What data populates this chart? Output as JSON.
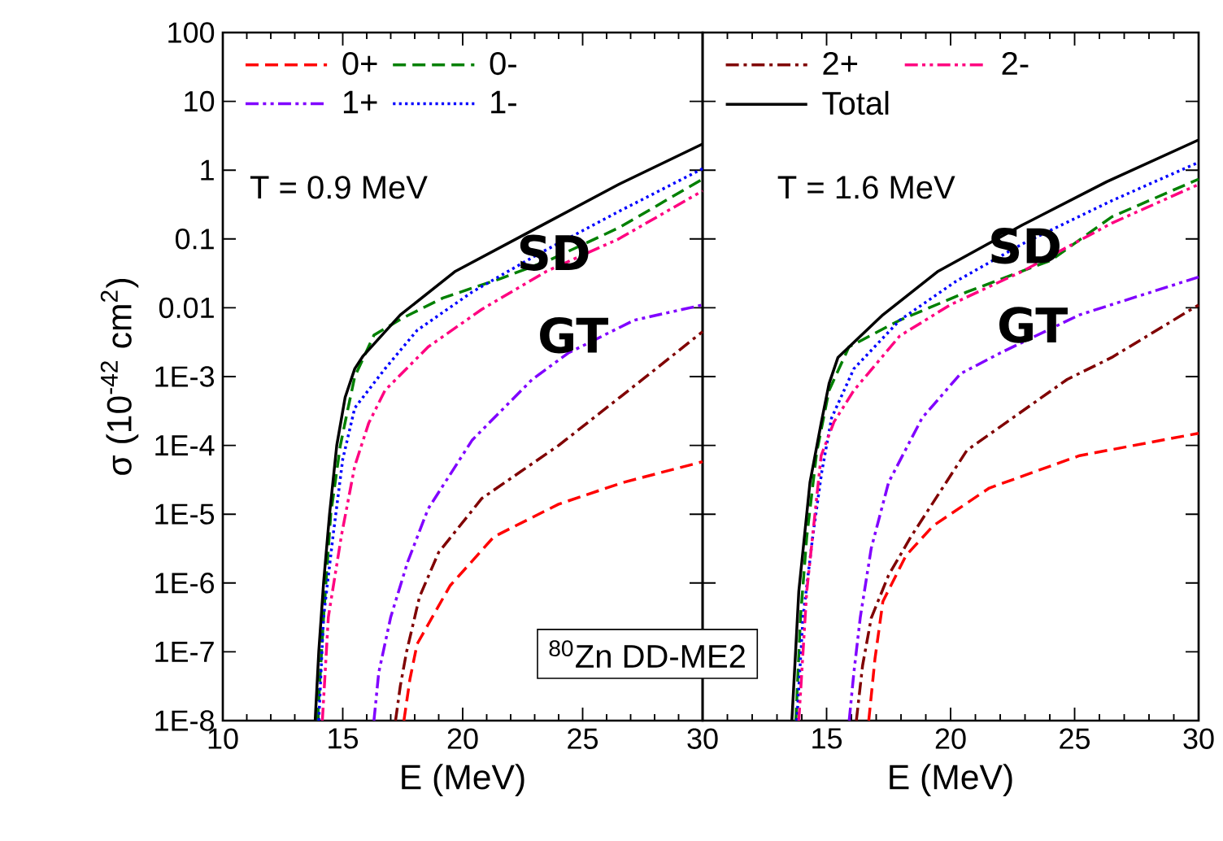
{
  "chart_data": [
    {
      "type": "line",
      "xlabel": "E (MeV)",
      "ylabel": "σ (10$^{-42}$ cm$^{2}$)",
      "log": "y",
      "legend": "top left",
      "xlim": [
        10,
        30
      ],
      "ylim": [
        1e-08,
        100
      ],
      "xticks": [
        10,
        15,
        20,
        25,
        30
      ],
      "yticks": [
        {
          "value": 1e-08,
          "label": "1E-8"
        },
        {
          "value": 1e-07,
          "label": "1E-7"
        },
        {
          "value": 1e-06,
          "label": "1E-6"
        },
        {
          "value": 1e-05,
          "label": "1E-5"
        },
        {
          "value": 0.0001,
          "label": "1E-4"
        },
        {
          "value": 0.001,
          "label": "1E-3"
        },
        0.01,
        0.1,
        1,
        10,
        100
      ],
      "annotations": [
        "T = 0.9 MeV",
        "SD",
        "GT",
        "$^{80}$Zn  DD-ME2"
      ],
      "series": [
        {
          "name": "0+",
          "color": "#ff0000",
          "line_style": "dashed",
          "x": [
            17.55,
            17.8,
            18.1,
            19.47,
            21.3,
            24,
            26.7,
            30
          ],
          "values": [
            1e-08,
            4e-08,
            1.3e-07,
            9.1e-07,
            4.7e-06,
            1.4e-05,
            2.9e-05,
            5.8e-05
          ]
        },
        {
          "name": "0-",
          "color": "#008000",
          "line_style": "dashed",
          "x": [
            13.95,
            14.2,
            14.5,
            14.9,
            15.2,
            15.5,
            16.3,
            17.5,
            19.2,
            21.5,
            23.6,
            26.5,
            30
          ],
          "values": [
            1e-08,
            3.2e-07,
            1e-05,
            0.0001,
            0.00032,
            0.001,
            0.004,
            0.0071,
            0.014,
            0.026,
            0.049,
            0.145,
            0.74
          ]
        },
        {
          "name": "1+",
          "color": "#8000ff",
          "line_style": "dashdotdot",
          "x": [
            16.3,
            16.5,
            17.0,
            17.7,
            18.56,
            20.4,
            22.9,
            24.4,
            27.15,
            30
          ],
          "values": [
            1e-08,
            5e-08,
            3.2e-07,
            2e-06,
            1.2e-05,
            0.00012,
            0.00091,
            0.0022,
            0.0066,
            0.011
          ]
        },
        {
          "name": "1-",
          "color": "#0000ff",
          "line_style": "dotted",
          "x": [
            14.0,
            14.2,
            14.6,
            15.0,
            15.5,
            16.76,
            18.1,
            20.4,
            23.1,
            26.5,
            30
          ],
          "values": [
            1e-08,
            3.2e-07,
            5e-06,
            6.3e-05,
            0.00035,
            0.0013,
            0.0047,
            0.017,
            0.059,
            0.25,
            1.05
          ]
        },
        {
          "color": "#800000",
          "line_style": "dashdot",
          "x": [
            17.2,
            17.4,
            17.66,
            18.2,
            19.0,
            20.8,
            24,
            27.5,
            30
          ],
          "values": [
            1e-08,
            3.2e-08,
            1e-07,
            6.3e-07,
            2.8e-06,
            1.7e-05,
            0.0001,
            0.00091,
            0.0045
          ]
        },
        {
          "color": "#ff0080",
          "line_style": "dashdotdot",
          "x": [
            14.15,
            14.4,
            14.95,
            15.5,
            16.08,
            16.76,
            18.56,
            20.8,
            23.5,
            26.5,
            30
          ],
          "values": [
            1e-08,
            3.2e-07,
            5e-06,
            5e-05,
            0.00021,
            0.00063,
            0.0027,
            0.0095,
            0.034,
            0.1,
            0.5
          ]
        },
        {
          "color": "#000000",
          "line_style": "solid",
          "x": [
            13.85,
            14.0,
            14.2,
            14.45,
            14.75,
            15.1,
            15.5,
            15.85,
            17.4,
            19.7,
            23.1,
            26.5,
            30
          ],
          "values": [
            1e-08,
            1e-07,
            1e-06,
            1e-05,
            0.0001,
            0.0005,
            0.0013,
            0.002,
            0.0079,
            0.034,
            0.145,
            0.62,
            2.4
          ]
        }
      ]
    },
    {
      "type": "line",
      "xlabel": "E (MeV)",
      "log": "y",
      "legend": "top left",
      "tick_labels": "x",
      "xlim": [
        10,
        30
      ],
      "ylim": [
        1e-08,
        100
      ],
      "xticks": [
        {
          "value": 10,
          "label": null
        },
        15,
        20,
        25,
        30
      ],
      "yticks": [
        1e-08,
        1e-07,
        1e-06,
        1e-05,
        0.0001,
        0.001,
        0.01,
        0.1,
        1,
        10,
        100
      ],
      "annotations": [
        "T = 1.6 MeV",
        "SD",
        "GT"
      ],
      "series": [
        {
          "color": "#ff0000",
          "line_style": "dashed",
          "x": [
            16.7,
            16.95,
            17.27,
            18.2,
            19.3,
            21.56,
            25.2,
            30
          ],
          "values": [
            1e-08,
            7.9e-08,
            5.4e-07,
            2.5e-06,
            6.8e-06,
            2.4e-05,
            7.1e-05,
            0.00015
          ]
        },
        {
          "color": "#008000",
          "line_style": "dashed",
          "x": [
            13.76,
            13.95,
            14.2,
            14.6,
            15.1,
            15.9,
            17.95,
            20.66,
            24.05,
            26.5,
            30
          ],
          "values": [
            1e-08,
            3.2e-07,
            4.7e-06,
            7.9e-05,
            0.00063,
            0.0027,
            0.0066,
            0.017,
            0.049,
            0.21,
            0.74
          ]
        },
        {
          "color": "#8000ff",
          "line_style": "dashdotdot",
          "x": [
            15.91,
            16.1,
            16.36,
            16.8,
            17.5,
            18.85,
            20.4,
            22,
            25.2,
            30
          ],
          "values": [
            1e-08,
            5e-08,
            3.2e-07,
            3.2e-06,
            2.9e-05,
            0.00025,
            0.0011,
            0.0022,
            0.0079,
            0.028
          ]
        },
        {
          "color": "#0000ff",
          "line_style": "dotted",
          "x": [
            13.8,
            14.05,
            14.44,
            14.8,
            15.2,
            16.1,
            17.95,
            20.2,
            22.9,
            26.5,
            30
          ],
          "values": [
            1e-08,
            3.2e-07,
            4.7e-06,
            4e-05,
            0.00025,
            0.0013,
            0.0066,
            0.024,
            0.085,
            0.36,
            1.3
          ]
        },
        {
          "name": "2+",
          "color": "#800000",
          "line_style": "dashdot",
          "x": [
            16.2,
            16.45,
            16.8,
            17.5,
            18.4,
            20.66,
            24.7,
            26.5,
            30
          ],
          "values": [
            1e-08,
            6.3e-08,
            3.1e-07,
            1.3e-06,
            4.7e-06,
            8.5e-05,
            0.00091,
            0.0019,
            0.011
          ]
        },
        {
          "name": "2-",
          "color": "#ff0080",
          "line_style": "dashdotdot",
          "x": [
            13.88,
            14.2,
            14.78,
            15.3,
            16.1,
            17.95,
            19.98,
            22.9,
            26.5,
            30
          ],
          "values": [
            1e-08,
            7.6e-07,
            7.1e-05,
            0.00022,
            0.00063,
            0.0039,
            0.011,
            0.034,
            0.17,
            0.62
          ]
        },
        {
          "name": "Total",
          "color": "#000000",
          "line_style": "solid",
          "x": [
            13.6,
            13.75,
            13.88,
            14.33,
            14.78,
            15.1,
            15.46,
            17.27,
            19.5,
            22.9,
            26.3,
            30
          ],
          "values": [
            1e-08,
            1e-07,
            7.6e-07,
            2.9e-05,
            0.00021,
            0.00079,
            0.0019,
            0.0079,
            0.034,
            0.16,
            0.68,
            2.75
          ]
        }
      ]
    }
  ]
}
